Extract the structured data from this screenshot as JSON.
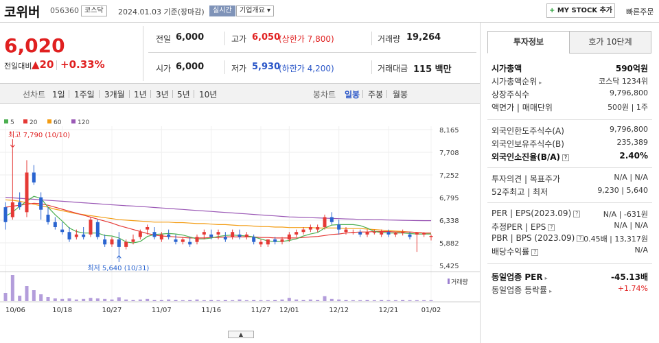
{
  "header": {
    "name": "코위버",
    "code": "056360",
    "market_tag": "코스닥",
    "date": "2024.01.03 기준(장마감)",
    "realtime_tag": "실시간",
    "overview_tag": "기업개요",
    "mystock_label": "MY STOCK 추가",
    "quick_order": "빠른주문"
  },
  "quote": {
    "price": "6,020",
    "change_label": "전일대비",
    "change_value": "▲20",
    "change_pct": "+0.33%",
    "prev_close_label": "전일",
    "prev_close": "6,000",
    "high_label": "고가",
    "high": "6,050",
    "upper_limit": "(상한가 7,800)",
    "volume_label": "거래량",
    "volume": "19,264",
    "open_label": "시가",
    "open": "6,000",
    "low_label": "저가",
    "low": "5,930",
    "lower_limit": "(하한가 4,200)",
    "amount_label": "거래대금",
    "amount": "115 백만"
  },
  "chart_tabs": {
    "line_label": "선차트",
    "periods": [
      "1일",
      "1주일",
      "3개월",
      "1년",
      "3년",
      "5년",
      "10년"
    ],
    "candle_label": "봉차트",
    "candles": [
      "일봉",
      "주봉",
      "월봉"
    ],
    "selected_candle": "일봉"
  },
  "chart_data": {
    "type": "candlestick",
    "legend": [
      {
        "name": "5",
        "color": "#4caf50"
      },
      {
        "name": "20",
        "color": "#e53935"
      },
      {
        "name": "60",
        "color": "#f39c12"
      },
      {
        "name": "120",
        "color": "#9b59b6"
      }
    ],
    "y_ticks": [
      8165,
      7708,
      7252,
      6795,
      6338,
      5882,
      5425
    ],
    "ylim": [
      5425,
      8165
    ],
    "x_ticks": [
      {
        "label": "10/06",
        "i": 0
      },
      {
        "label": "10/18",
        "i": 8
      },
      {
        "label": "10/27",
        "i": 15
      },
      {
        "label": "11/07",
        "i": 22
      },
      {
        "label": "11/16",
        "i": 29
      },
      {
        "label": "11/27",
        "i": 36
      },
      {
        "label": "12/01",
        "i": 40
      },
      {
        "label": "12/12",
        "i": 47
      },
      {
        "label": "12/21",
        "i": 54
      },
      {
        "label": "01/02",
        "i": 60
      }
    ],
    "high_annotation": "최고 7,790 (10/10)",
    "high_index": 1,
    "high_value": 7790,
    "low_annotation": "최저 5,640 (10/31)",
    "low_index": 16,
    "low_value": 5640,
    "volume_label": "거래량",
    "candles": [
      [
        6600,
        6700,
        6150,
        6300
      ],
      [
        6400,
        7790,
        6350,
        6700
      ],
      [
        6700,
        6900,
        6550,
        6600
      ],
      [
        6500,
        7550,
        6400,
        7300
      ],
      [
        7300,
        7450,
        7050,
        7100
      ],
      [
        6800,
        6900,
        6350,
        6550
      ],
      [
        6450,
        6600,
        6250,
        6300
      ],
      [
        6300,
        6400,
        6150,
        6200
      ],
      [
        6150,
        6300,
        6050,
        6100
      ],
      [
        6100,
        6200,
        5900,
        5950
      ],
      [
        6000,
        6150,
        5950,
        6050
      ],
      [
        6050,
        6200,
        5950,
        6000
      ],
      [
        6050,
        6400,
        6000,
        6350
      ],
      [
        6300,
        6350,
        5950,
        6000
      ],
      [
        5950,
        6050,
        5800,
        5850
      ],
      [
        5850,
        6000,
        5800,
        5950
      ],
      [
        5950,
        6100,
        5640,
        5800
      ],
      [
        5800,
        5950,
        5750,
        5900
      ],
      [
        5900,
        6050,
        5850,
        5950
      ],
      [
        6000,
        6150,
        5950,
        6100
      ],
      [
        6150,
        6250,
        6050,
        6200
      ],
      [
        6100,
        6200,
        5950,
        6000
      ],
      [
        5950,
        6100,
        5900,
        6050
      ],
      [
        6050,
        6150,
        5950,
        6000
      ],
      [
        5950,
        6050,
        5850,
        5900
      ],
      [
        5900,
        6000,
        5850,
        5950
      ],
      [
        5900,
        6000,
        5800,
        5850
      ],
      [
        5900,
        6050,
        5850,
        6000
      ],
      [
        6050,
        6150,
        5950,
        6100
      ],
      [
        6050,
        6150,
        5950,
        6000
      ],
      [
        6050,
        6150,
        5950,
        6100
      ],
      [
        6000,
        6100,
        5900,
        5950
      ],
      [
        6000,
        6150,
        5950,
        6100
      ],
      [
        6050,
        6150,
        5950,
        6000
      ],
      [
        6000,
        6100,
        5950,
        6050
      ],
      [
        6000,
        6050,
        5850,
        5900
      ],
      [
        5850,
        5950,
        5800,
        5900
      ],
      [
        5850,
        5950,
        5800,
        5950
      ],
      [
        5950,
        6000,
        5850,
        5900
      ],
      [
        5900,
        6000,
        5850,
        5950
      ],
      [
        5950,
        6100,
        5900,
        6050
      ],
      [
        6050,
        6150,
        6000,
        6100
      ],
      [
        6100,
        6200,
        6050,
        6150
      ],
      [
        6150,
        6250,
        6100,
        6200
      ],
      [
        6150,
        6250,
        6100,
        6200
      ],
      [
        6200,
        6450,
        6150,
        6400
      ],
      [
        6400,
        6500,
        6250,
        6300
      ],
      [
        6250,
        6350,
        6050,
        6150
      ],
      [
        6100,
        6200,
        6050,
        6150
      ],
      [
        6100,
        6150,
        6050,
        6100
      ],
      [
        6100,
        6150,
        6000,
        6050
      ],
      [
        6050,
        6150,
        6000,
        6100
      ],
      [
        6100,
        6150,
        6050,
        6100
      ],
      [
        6050,
        6150,
        6000,
        6100
      ],
      [
        6100,
        6150,
        6000,
        6050
      ],
      [
        6050,
        6100,
        6000,
        6080
      ],
      [
        6080,
        6150,
        6030,
        6100
      ],
      [
        6050,
        6100,
        5950,
        6000
      ],
      [
        6050,
        6100,
        5700,
        6080
      ],
      [
        6050,
        6100,
        6000,
        6080
      ],
      [
        6000,
        6050,
        5930,
        6020
      ]
    ],
    "volumes": [
      30,
      95,
      20,
      55,
      40,
      25,
      15,
      10,
      8,
      10,
      6,
      8,
      12,
      10,
      8,
      6,
      14,
      6,
      5,
      6,
      8,
      5,
      5,
      6,
      5,
      4,
      5,
      6,
      4,
      5,
      4,
      5,
      4,
      6,
      4,
      5,
      4,
      4,
      5,
      6,
      12,
      6,
      5,
      6,
      5,
      18,
      8,
      6,
      5,
      4,
      4,
      5,
      4,
      5,
      4,
      4,
      5,
      4,
      4,
      4,
      4
    ],
    "ma5": [
      6420,
      6500,
      6620,
      6720,
      6820,
      6780,
      6600,
      6450,
      6320,
      6180,
      6110,
      6080,
      6080,
      6080,
      6030,
      6020,
      5980,
      5900,
      5880,
      5910,
      6010,
      6050,
      6060,
      6070,
      6060,
      6040,
      6000,
      5960,
      5960,
      5980,
      6010,
      6030,
      6040,
      6030,
      6020,
      6000,
      5960,
      5920,
      5910,
      5910,
      5930,
      5960,
      6020,
      6060,
      6090,
      6180,
      6240,
      6250,
      6250,
      6250,
      6230,
      6180,
      6110,
      6090,
      6080,
      6080,
      6080,
      6070,
      6060,
      6060,
      6060
    ],
    "ma20": [
      6600,
      6620,
      6640,
      6660,
      6680,
      6670,
      6640,
      6600,
      6560,
      6520,
      6480,
      6440,
      6400,
      6360,
      6320,
      6280,
      6230,
      6190,
      6150,
      6110,
      6070,
      6040,
      6020,
      6010,
      6000,
      5990,
      5980,
      5980,
      5980,
      5990,
      5990,
      6000,
      6000,
      6000,
      6000,
      6000,
      5990,
      5990,
      5980,
      5980,
      5980,
      5980,
      5990,
      6000,
      6010,
      6030,
      6050,
      6060,
      6080,
      6090,
      6100,
      6100,
      6110,
      6110,
      6110,
      6100,
      6100,
      6100,
      6090,
      6080,
      6080
    ],
    "ma60": [
      6750,
      6740,
      6720,
      6690,
      6660,
      6630,
      6600,
      6560,
      6530,
      6500,
      6470,
      6450,
      6430,
      6410,
      6390,
      6370,
      6350,
      6340,
      6330,
      6320,
      6310,
      6300,
      6300,
      6300,
      6290,
      6290,
      6280,
      6270,
      6270,
      6260,
      6250,
      6250,
      6240,
      6230,
      6230,
      6220,
      6210,
      6210,
      6200,
      6200,
      6190,
      6190,
      6190,
      6190,
      6180,
      6180,
      6180,
      6180,
      6170,
      6170,
      6170,
      6160,
      6150,
      6140,
      6130,
      6120,
      6110,
      6100,
      6090,
      6080,
      6080
    ],
    "ma120": [
      6800,
      6790,
      6780,
      6770,
      6760,
      6750,
      6740,
      6730,
      6720,
      6710,
      6700,
      6690,
      6680,
      6670,
      6660,
      6650,
      6640,
      6630,
      6625,
      6615,
      6605,
      6595,
      6585,
      6575,
      6565,
      6555,
      6545,
      6535,
      6525,
      6515,
      6505,
      6495,
      6485,
      6475,
      6465,
      6455,
      6445,
      6435,
      6425,
      6415,
      6405,
      6400,
      6395,
      6390,
      6385,
      6380,
      6375,
      6370,
      6365,
      6360,
      6355,
      6352,
      6349,
      6346,
      6343,
      6340,
      6337,
      6334,
      6331,
      6330,
      6330
    ]
  },
  "panel": {
    "tab_invest": "투자정보",
    "tab_orderbook": "호가 10단계",
    "rows1": [
      {
        "k": "시가총액",
        "v": "590억원"
      },
      {
        "k": "시가총액순위",
        "v": "코스닥 1234위"
      },
      {
        "k": "상장주식수",
        "v": "9,796,800"
      },
      {
        "k": "액면가 | 매매단위",
        "v": "500원 | 1주"
      }
    ],
    "rows2": [
      {
        "k": "외국인한도주식수(A)",
        "v": "9,796,800"
      },
      {
        "k": "외국인보유주식수(B)",
        "v": "235,389"
      },
      {
        "k": "외국인소진율(B/A)",
        "v": "2.40%"
      }
    ],
    "rows3": [
      {
        "k": "투자의견 | 목표주가",
        "v": "N/A | N/A"
      },
      {
        "k": "52주최고 | 최저",
        "v": "9,230 | 5,640"
      }
    ],
    "rows4": [
      {
        "k": "PER | EPS(2023.09)",
        "v": "N/A | -631원"
      },
      {
        "k": "추정PER | EPS",
        "v": "N/A | N/A"
      },
      {
        "k": "PBR | BPS (2023.09)",
        "v": "0.45배 | 13,317원"
      },
      {
        "k": "배당수익률",
        "v": "N/A"
      }
    ],
    "rows5": [
      {
        "k": "동일업종 PER",
        "v": "-45.13배"
      },
      {
        "k": "동일업종 등락률",
        "v": "+1.74%"
      }
    ]
  }
}
